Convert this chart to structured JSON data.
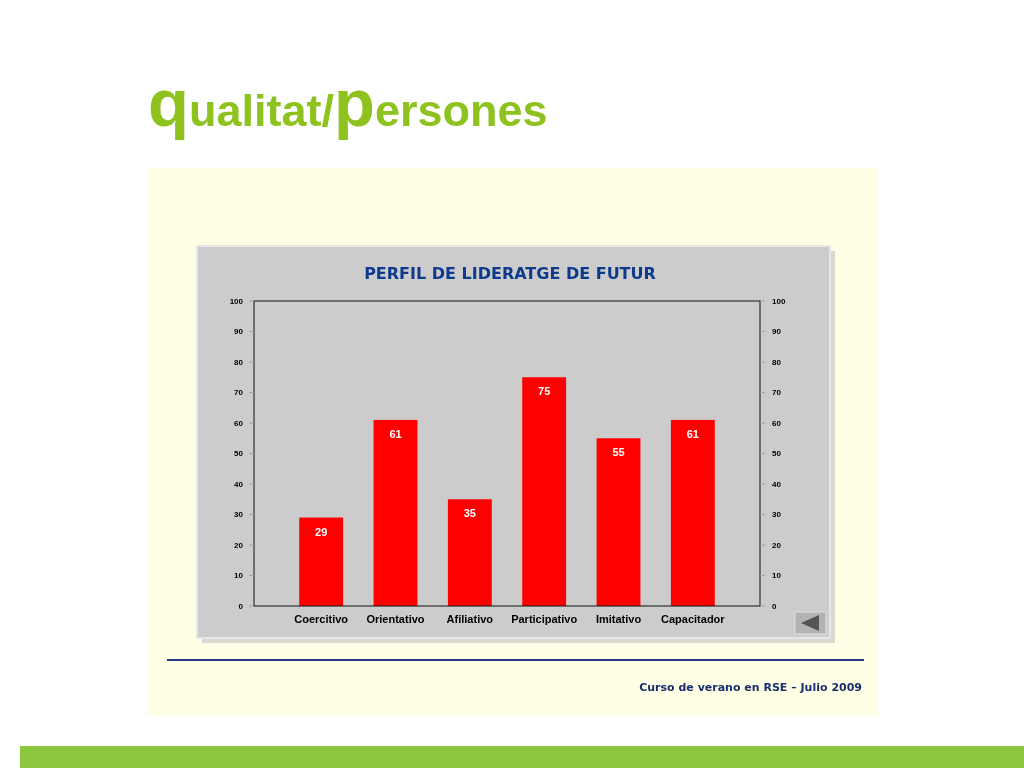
{
  "chart_data": {
    "type": "bar",
    "title": "qualitat/persones",
    "subtitle": "PERFIL DE LIDERATGE DE FUTUR",
    "categories": [
      "Coercitivo",
      "Orientativo",
      "Afiliativo",
      "Participativo",
      "Imitativo",
      "Capacitador"
    ],
    "values": [
      29,
      61,
      35,
      75,
      55,
      61
    ],
    "color": "#ff0000",
    "ylim": [
      0,
      100
    ],
    "yticks": [
      0,
      10,
      20,
      30,
      40,
      50,
      60,
      70,
      80,
      90,
      100
    ],
    "y2lim": [
      0,
      100
    ],
    "y2ticks": [
      0,
      10,
      20,
      30,
      40,
      50,
      60,
      70,
      80,
      90,
      100
    ],
    "data_labels": true,
    "annotations": [
      "Curso de verano en RSE – Julio 2009"
    ]
  }
}
